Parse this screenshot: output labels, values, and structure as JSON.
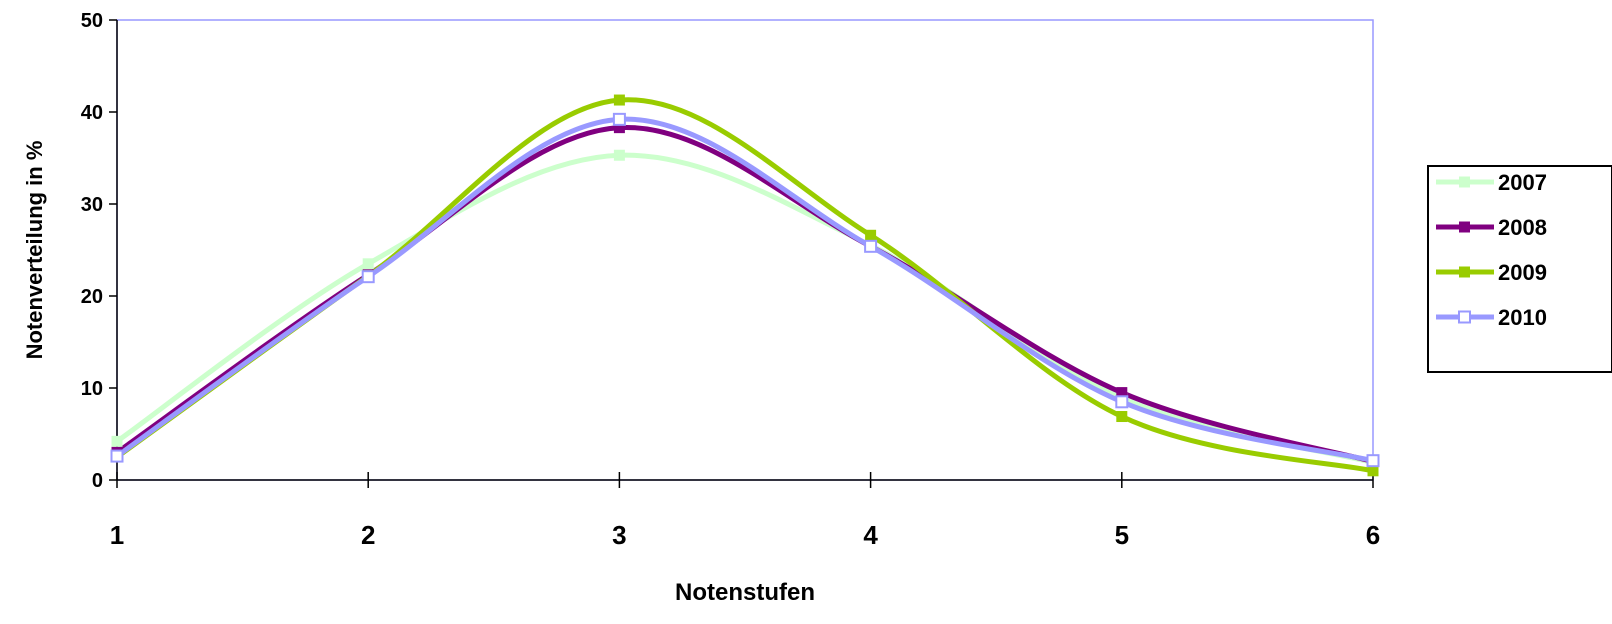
{
  "chart_data": {
    "type": "line",
    "xlabel": "Notenstufen",
    "ylabel": "Notenverteilung in %",
    "x": [
      1,
      2,
      3,
      4,
      5,
      6
    ],
    "ylim": [
      0,
      50
    ],
    "xlim": [
      1,
      6
    ],
    "yticks": [
      0,
      10,
      20,
      30,
      40,
      50
    ],
    "xticks": [
      1,
      2,
      3,
      4,
      5,
      6
    ],
    "grid": false,
    "legend_position": "right",
    "series": [
      {
        "name": "2007",
        "values": [
          4.2,
          23.5,
          35.3,
          25.5,
          8.9,
          1.9
        ],
        "color": "#ccffcc",
        "marker": "square-filled"
      },
      {
        "name": "2008",
        "values": [
          3.0,
          22.3,
          38.3,
          25.4,
          9.5,
          2.0
        ],
        "color": "#800080",
        "marker": "square-filled"
      },
      {
        "name": "2009",
        "values": [
          2.5,
          22.2,
          41.3,
          26.6,
          6.9,
          1.0
        ],
        "color": "#99cc00",
        "marker": "square-filled"
      },
      {
        "name": "2010",
        "values": [
          2.6,
          22.1,
          39.2,
          25.4,
          8.5,
          2.1
        ],
        "color": "#9999ff",
        "marker": "square-open"
      }
    ]
  }
}
